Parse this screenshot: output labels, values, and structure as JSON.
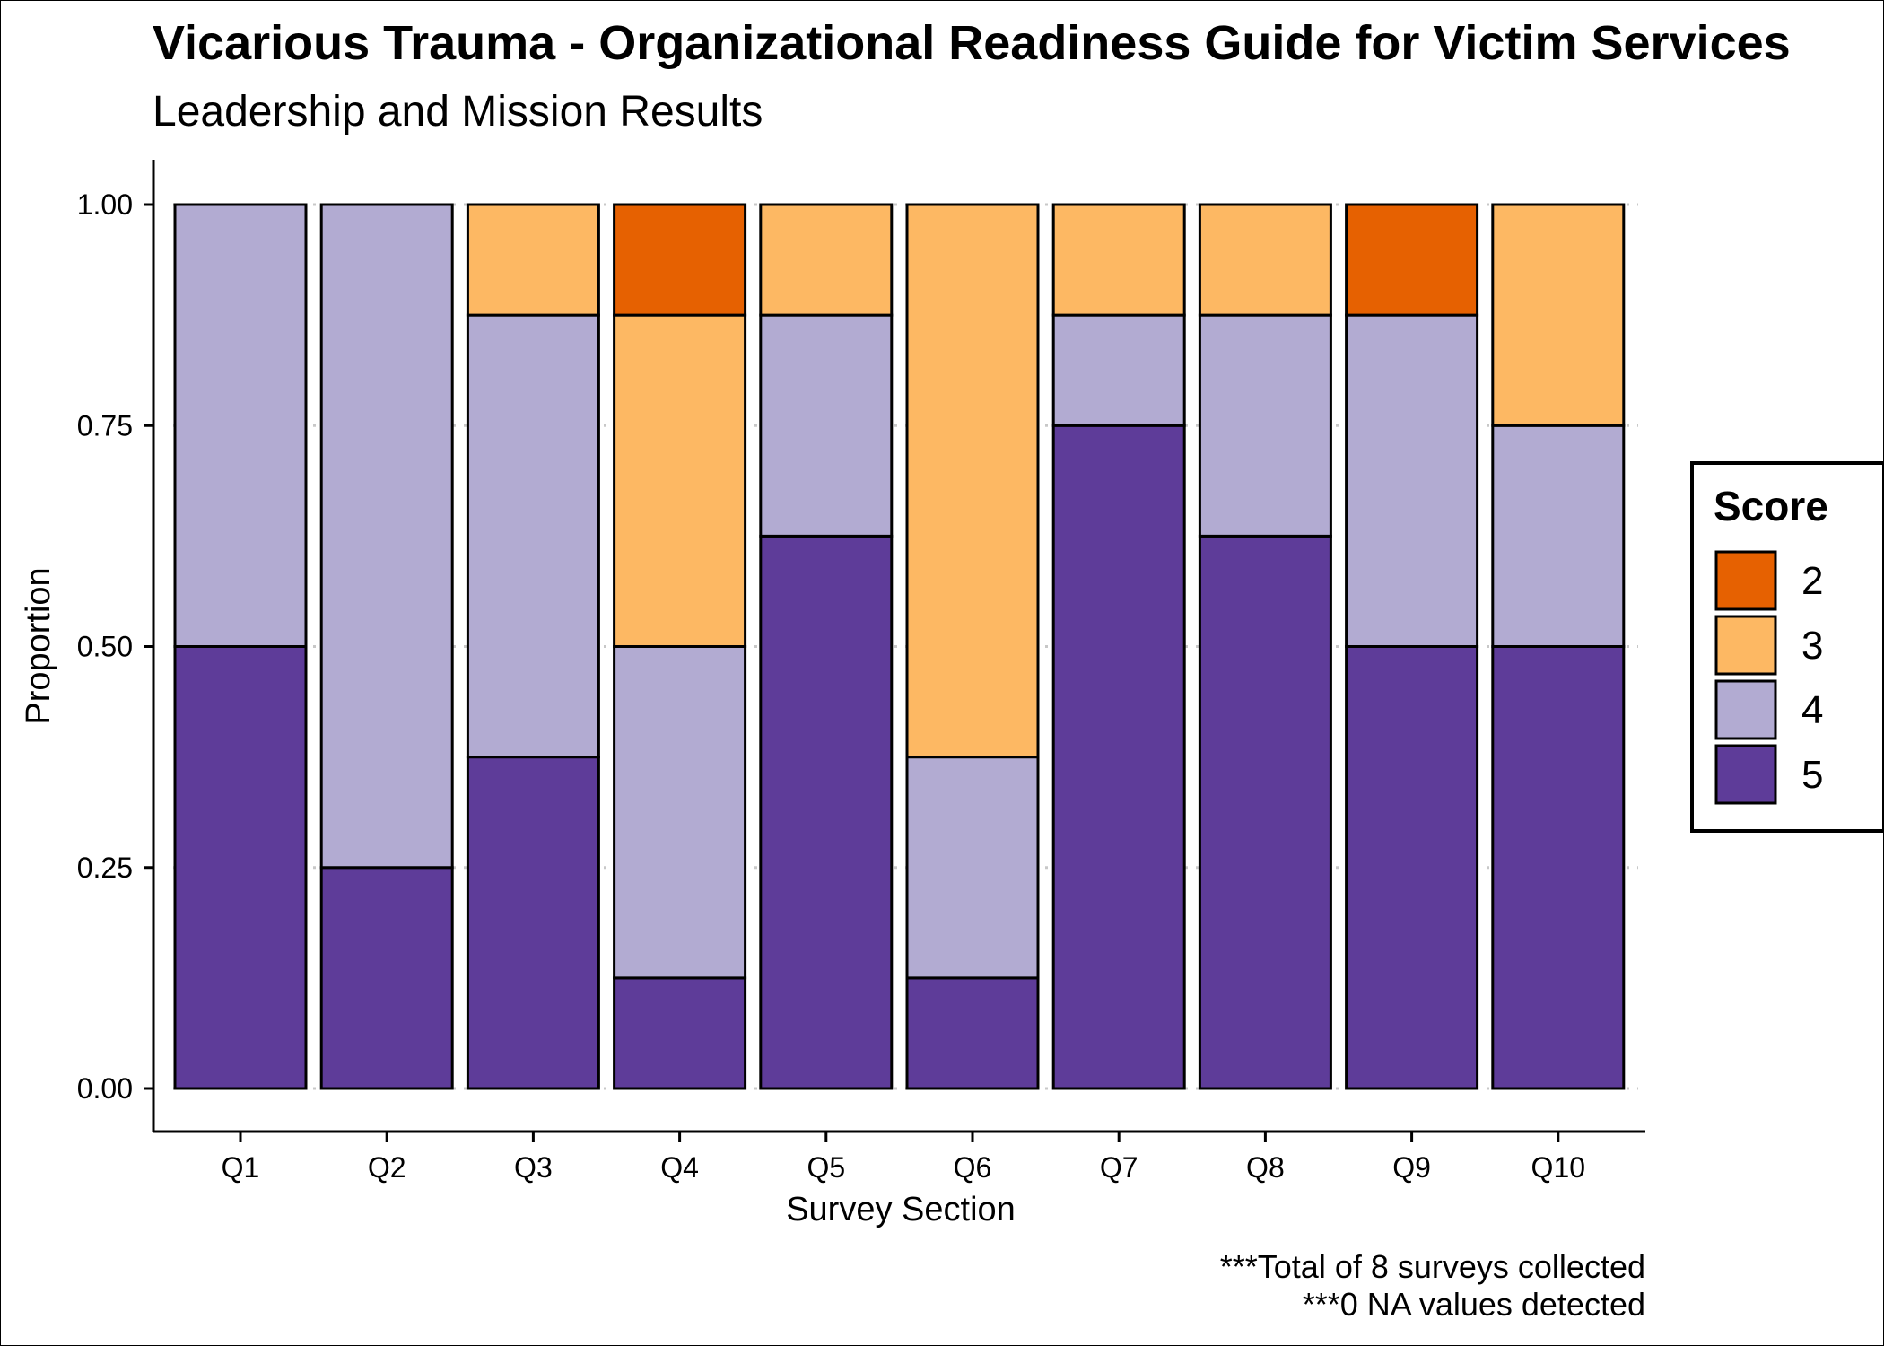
{
  "chart_data": {
    "type": "bar",
    "stacked": true,
    "title": "Vicarious Trauma - Organizational Readiness Guide for Victim Services",
    "subtitle": "Leadership and Mission Results",
    "xlabel": "Survey Section",
    "ylabel": "Proportion",
    "ylim": [
      0,
      1
    ],
    "y_ticks": [
      "0.00",
      "0.25",
      "0.50",
      "0.75",
      "1.00"
    ],
    "grid": "horizontal dotted",
    "categories": [
      "Q1",
      "Q2",
      "Q3",
      "Q4",
      "Q5",
      "Q6",
      "Q7",
      "Q8",
      "Q9",
      "Q10"
    ],
    "series": [
      {
        "name": "5",
        "color": "#5e3c99",
        "values": [
          0.5,
          0.25,
          0.375,
          0.125,
          0.625,
          0.125,
          0.75,
          0.625,
          0.5,
          0.5
        ]
      },
      {
        "name": "4",
        "color": "#b2abd2",
        "values": [
          0.5,
          0.75,
          0.5,
          0.375,
          0.25,
          0.25,
          0.125,
          0.25,
          0.375,
          0.25
        ]
      },
      {
        "name": "3",
        "color": "#fdb863",
        "values": [
          0,
          0,
          0.125,
          0.375,
          0.125,
          0.625,
          0.125,
          0.125,
          0,
          0.25
        ]
      },
      {
        "name": "2",
        "color": "#e66101",
        "values": [
          0,
          0,
          0,
          0.125,
          0,
          0,
          0,
          0,
          0.125,
          0
        ]
      }
    ],
    "legend": {
      "title": "Score",
      "position": "right",
      "order": [
        "2",
        "3",
        "4",
        "5"
      ]
    },
    "captions": [
      "***Total of 8 surveys collected",
      "***0 NA values detected"
    ]
  }
}
